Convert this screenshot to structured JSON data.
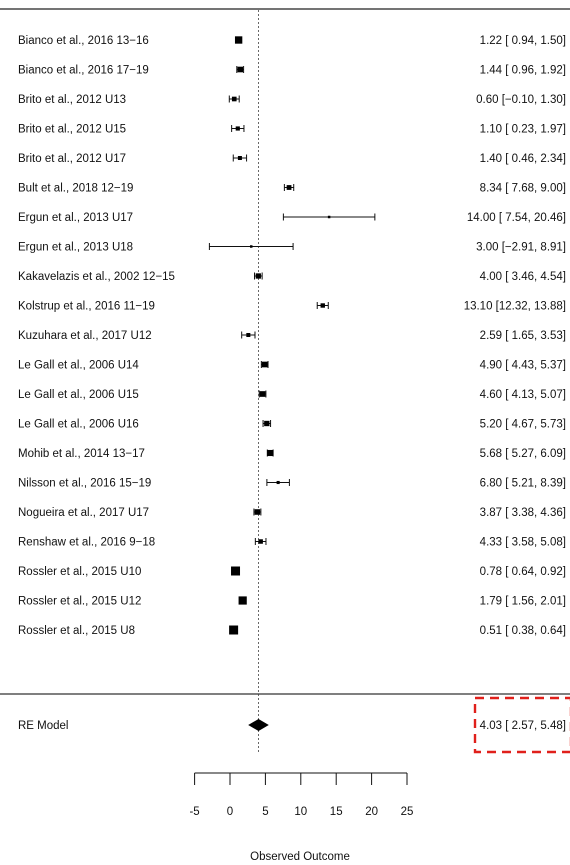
{
  "chart_data": {
    "type": "forest",
    "xlabel": "Observed Outcome",
    "xlim": [
      -5,
      25
    ],
    "xticks": [
      -5,
      0,
      5,
      10,
      15,
      20,
      25
    ],
    "reference_line": 4.03,
    "studies": [
      {
        "label": "Bianco et al., 2016 13−16",
        "estimate": 1.22,
        "ci_low": 0.94,
        "ci_high": 1.5,
        "text": "1.22 [ 0.94,  1.50]"
      },
      {
        "label": "Bianco et al., 2016 17−19",
        "estimate": 1.44,
        "ci_low": 0.96,
        "ci_high": 1.92,
        "text": "1.44 [ 0.96,  1.92]"
      },
      {
        "label": "Brito et al., 2012 U13",
        "estimate": 0.6,
        "ci_low": -0.1,
        "ci_high": 1.3,
        "text": "0.60 [−0.10,  1.30]"
      },
      {
        "label": "Brito et al., 2012 U15",
        "estimate": 1.1,
        "ci_low": 0.23,
        "ci_high": 1.97,
        "text": "1.10 [ 0.23,  1.97]"
      },
      {
        "label": "Brito et al., 2012 U17",
        "estimate": 1.4,
        "ci_low": 0.46,
        "ci_high": 2.34,
        "text": "1.40 [ 0.46,  2.34]"
      },
      {
        "label": "Bult et al., 2018 12−19",
        "estimate": 8.34,
        "ci_low": 7.68,
        "ci_high": 9.0,
        "text": "8.34 [ 7.68,  9.00]"
      },
      {
        "label": "Ergun et al., 2013 U17",
        "estimate": 14.0,
        "ci_low": 7.54,
        "ci_high": 20.46,
        "text": "14.00 [ 7.54, 20.46]"
      },
      {
        "label": "Ergun et al., 2013 U18",
        "estimate": 3.0,
        "ci_low": -2.91,
        "ci_high": 8.91,
        "text": "3.00 [−2.91,  8.91]"
      },
      {
        "label": "Kakavelazis et al., 2002 12−15",
        "estimate": 4.0,
        "ci_low": 3.46,
        "ci_high": 4.54,
        "text": "4.00 [ 3.46,  4.54]"
      },
      {
        "label": "Kolstrup et al., 2016 11−19",
        "estimate": 13.1,
        "ci_low": 12.32,
        "ci_high": 13.88,
        "text": "13.10 [12.32, 13.88]"
      },
      {
        "label": "Kuzuhara et al., 2017 U12",
        "estimate": 2.59,
        "ci_low": 1.65,
        "ci_high": 3.53,
        "text": "2.59 [ 1.65,  3.53]"
      },
      {
        "label": "Le Gall et al., 2006 U14",
        "estimate": 4.9,
        "ci_low": 4.43,
        "ci_high": 5.37,
        "text": "4.90 [ 4.43,  5.37]"
      },
      {
        "label": "Le Gall et al., 2006 U15",
        "estimate": 4.6,
        "ci_low": 4.13,
        "ci_high": 5.07,
        "text": "4.60 [ 4.13,  5.07]"
      },
      {
        "label": "Le Gall et al., 2006 U16",
        "estimate": 5.2,
        "ci_low": 4.67,
        "ci_high": 5.73,
        "text": "5.20 [ 4.67,  5.73]"
      },
      {
        "label": "Mohib et al., 2014 13−17",
        "estimate": 5.68,
        "ci_low": 5.27,
        "ci_high": 6.09,
        "text": "5.68 [ 5.27,  6.09]"
      },
      {
        "label": "Nilsson et al., 2016 15−19",
        "estimate": 6.8,
        "ci_low": 5.21,
        "ci_high": 8.39,
        "text": "6.80 [ 5.21,  8.39]"
      },
      {
        "label": "Nogueira et al., 2017 U17",
        "estimate": 3.87,
        "ci_low": 3.38,
        "ci_high": 4.36,
        "text": "3.87 [ 3.38,  4.36]"
      },
      {
        "label": "Renshaw et al., 2016 9−18",
        "estimate": 4.33,
        "ci_low": 3.58,
        "ci_high": 5.08,
        "text": "4.33 [ 3.58,  5.08]"
      },
      {
        "label": "Rossler et al., 2015 U10",
        "estimate": 0.78,
        "ci_low": 0.64,
        "ci_high": 0.92,
        "text": "0.78 [ 0.64,  0.92]"
      },
      {
        "label": "Rossler et al., 2015 U12",
        "estimate": 1.79,
        "ci_low": 1.56,
        "ci_high": 2.01,
        "text": "1.79 [ 1.56,  2.01]"
      },
      {
        "label": "Rossler et al., 2015 U8",
        "estimate": 0.51,
        "ci_low": 0.38,
        "ci_high": 0.64,
        "text": "0.51 [ 0.38,  0.64]"
      }
    ],
    "summary": {
      "label": "RE Model",
      "estimate": 4.03,
      "ci_low": 2.57,
      "ci_high": 5.48,
      "text": "4.03 [ 2.57,  5.48]"
    },
    "highlight_color": "#e0201b"
  }
}
